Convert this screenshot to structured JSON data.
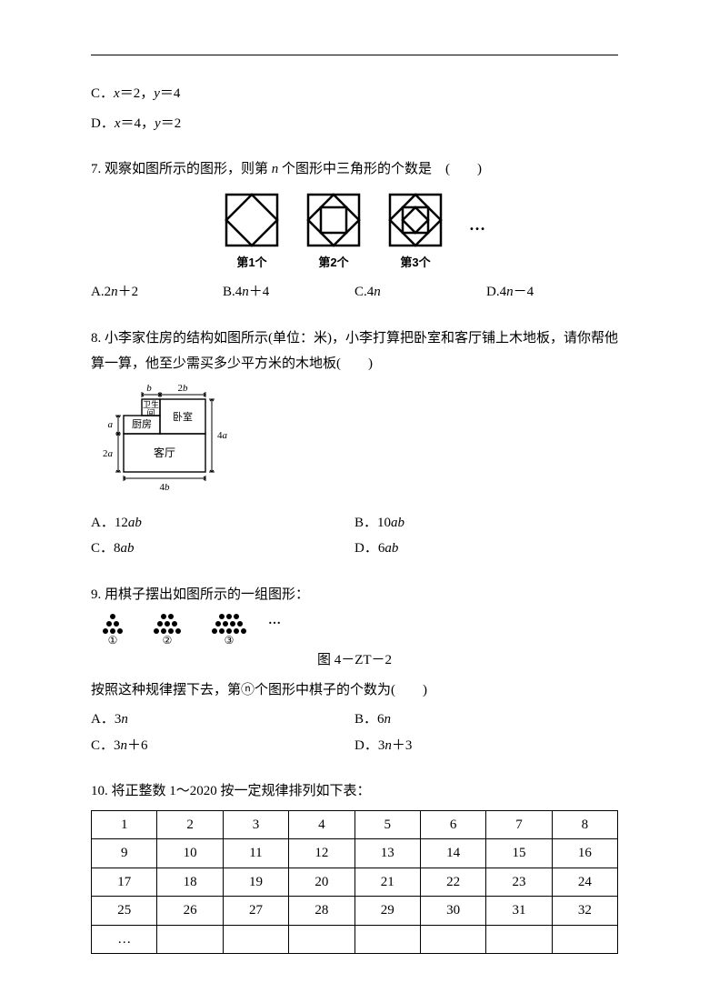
{
  "q6": {
    "optC": "C．x＝2，y＝4",
    "optD": "D．x＝4，y＝2"
  },
  "q7": {
    "num": "7.",
    "text": " 观察如图所示的图形，则第 n 个图形中三角形的个数是　(　　)",
    "captions": [
      "第1个",
      "第2个",
      "第3个"
    ],
    "ellipsis": "…",
    "optA": "A.2n＋2",
    "optB": "B.4n＋4",
    "optC": "C.4n",
    "optD": "D.4n－4"
  },
  "q8": {
    "num": "8.",
    "text": " 小李家住房的结构如图所示(单位：米)，小李打算把卧室和客厅铺上木地板，请你帮他算一算，他至少需买多少平方米的木地板(　　)",
    "labels": {
      "wc": "卫生",
      "wc2": "间",
      "kitchen": "厨房",
      "bedroom": "卧室",
      "living": "客厅",
      "b": "b",
      "2b": "2b",
      "a": "a",
      "2a": "2a",
      "4a": "4a",
      "4b": "4b"
    },
    "optA": "A．12ab",
    "optB": "B．10ab",
    "optC": "C．8ab",
    "optD": "D．6ab"
  },
  "q9": {
    "num": "9.",
    "text": " 用棋子摆出如图所示的一组图形：",
    "captions": [
      "①",
      "②",
      "③"
    ],
    "ellipsis": "…",
    "fig_label": "图 4－ZT－2",
    "followup": "按照这种规律摆下去，第ⓝ个图形中棋子的个数为(　　)",
    "optA": "A．3n",
    "optB": "B．6n",
    "optC": "C．3n＋6",
    "optD": "D．3n＋3"
  },
  "q10": {
    "num": "10.",
    "text": " 将正整数 1～2020 按一定规律排列如下表：",
    "table": {
      "rows": [
        [
          "1",
          "2",
          "3",
          "4",
          "5",
          "6",
          "7",
          "8"
        ],
        [
          "9",
          "10",
          "11",
          "12",
          "13",
          "14",
          "15",
          "16"
        ],
        [
          "17",
          "18",
          "19",
          "20",
          "21",
          "22",
          "23",
          "24"
        ],
        [
          "25",
          "26",
          "27",
          "28",
          "29",
          "30",
          "31",
          "32"
        ],
        [
          "…",
          "",
          "",
          "",
          "",
          "",
          "",
          ""
        ]
      ]
    }
  }
}
